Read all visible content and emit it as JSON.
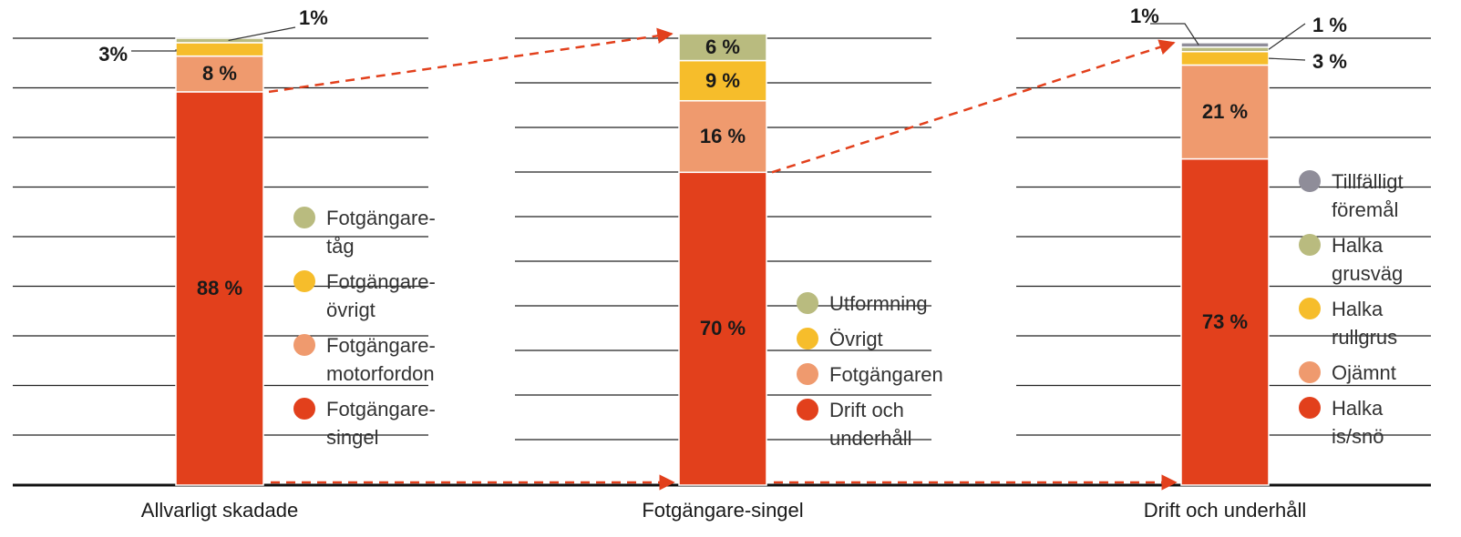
{
  "chart_data": [
    {
      "type": "bar",
      "stacked": true,
      "categories": [
        "Allvarligt skadade"
      ],
      "ylim": [
        0,
        100
      ],
      "series": [
        {
          "name": "Fotgängare-singel",
          "color": "#e2401c",
          "values": [
            88
          ],
          "value_labels": [
            "88 %"
          ]
        },
        {
          "name": "Fotgängare-motorfordon",
          "color": "#ef9a6e",
          "values": [
            8
          ],
          "value_labels": [
            "8 %"
          ]
        },
        {
          "name": "Fotgängare-övrigt",
          "color": "#f6bd2b",
          "values": [
            3
          ],
          "value_labels": [
            "3%"
          ]
        },
        {
          "name": "Fotgängare-tåg",
          "color": "#b9bb7f",
          "values": [
            1
          ],
          "value_labels": [
            "1%"
          ]
        }
      ]
    },
    {
      "type": "bar",
      "stacked": true,
      "categories": [
        "Fotgängare-singel"
      ],
      "ylim": [
        0,
        100
      ],
      "series": [
        {
          "name": "Drift och underhåll",
          "color": "#e2401c",
          "values": [
            70
          ],
          "value_labels": [
            "70 %"
          ]
        },
        {
          "name": "Fotgängaren",
          "color": "#ef9a6e",
          "values": [
            16
          ],
          "value_labels": [
            "16 %"
          ]
        },
        {
          "name": "Övrigt",
          "color": "#f6bd2b",
          "values": [
            9
          ],
          "value_labels": [
            "9 %"
          ]
        },
        {
          "name": "Utformning",
          "color": "#b9bb7f",
          "values": [
            6
          ],
          "value_labels": [
            "6 %"
          ]
        }
      ]
    },
    {
      "type": "bar",
      "stacked": true,
      "categories": [
        "Drift och underhåll"
      ],
      "ylim": [
        0,
        100
      ],
      "series": [
        {
          "name": "Halka is/snö",
          "color": "#e2401c",
          "values": [
            73
          ],
          "value_labels": [
            "73 %"
          ]
        },
        {
          "name": "Ojämnt",
          "color": "#ef9a6e",
          "values": [
            21
          ],
          "value_labels": [
            "21 %"
          ]
        },
        {
          "name": "Halka rullgrus",
          "color": "#f6bd2b",
          "values": [
            3
          ],
          "value_labels": [
            "3 %"
          ]
        },
        {
          "name": "Halka grusväg",
          "color": "#b9bb7f",
          "values": [
            1
          ],
          "value_labels": [
            "1 %"
          ]
        },
        {
          "name": "Tillfälligt föremål",
          "color": "#8f8d99",
          "values": [
            1
          ],
          "value_labels": [
            "1%"
          ]
        }
      ]
    }
  ]
}
